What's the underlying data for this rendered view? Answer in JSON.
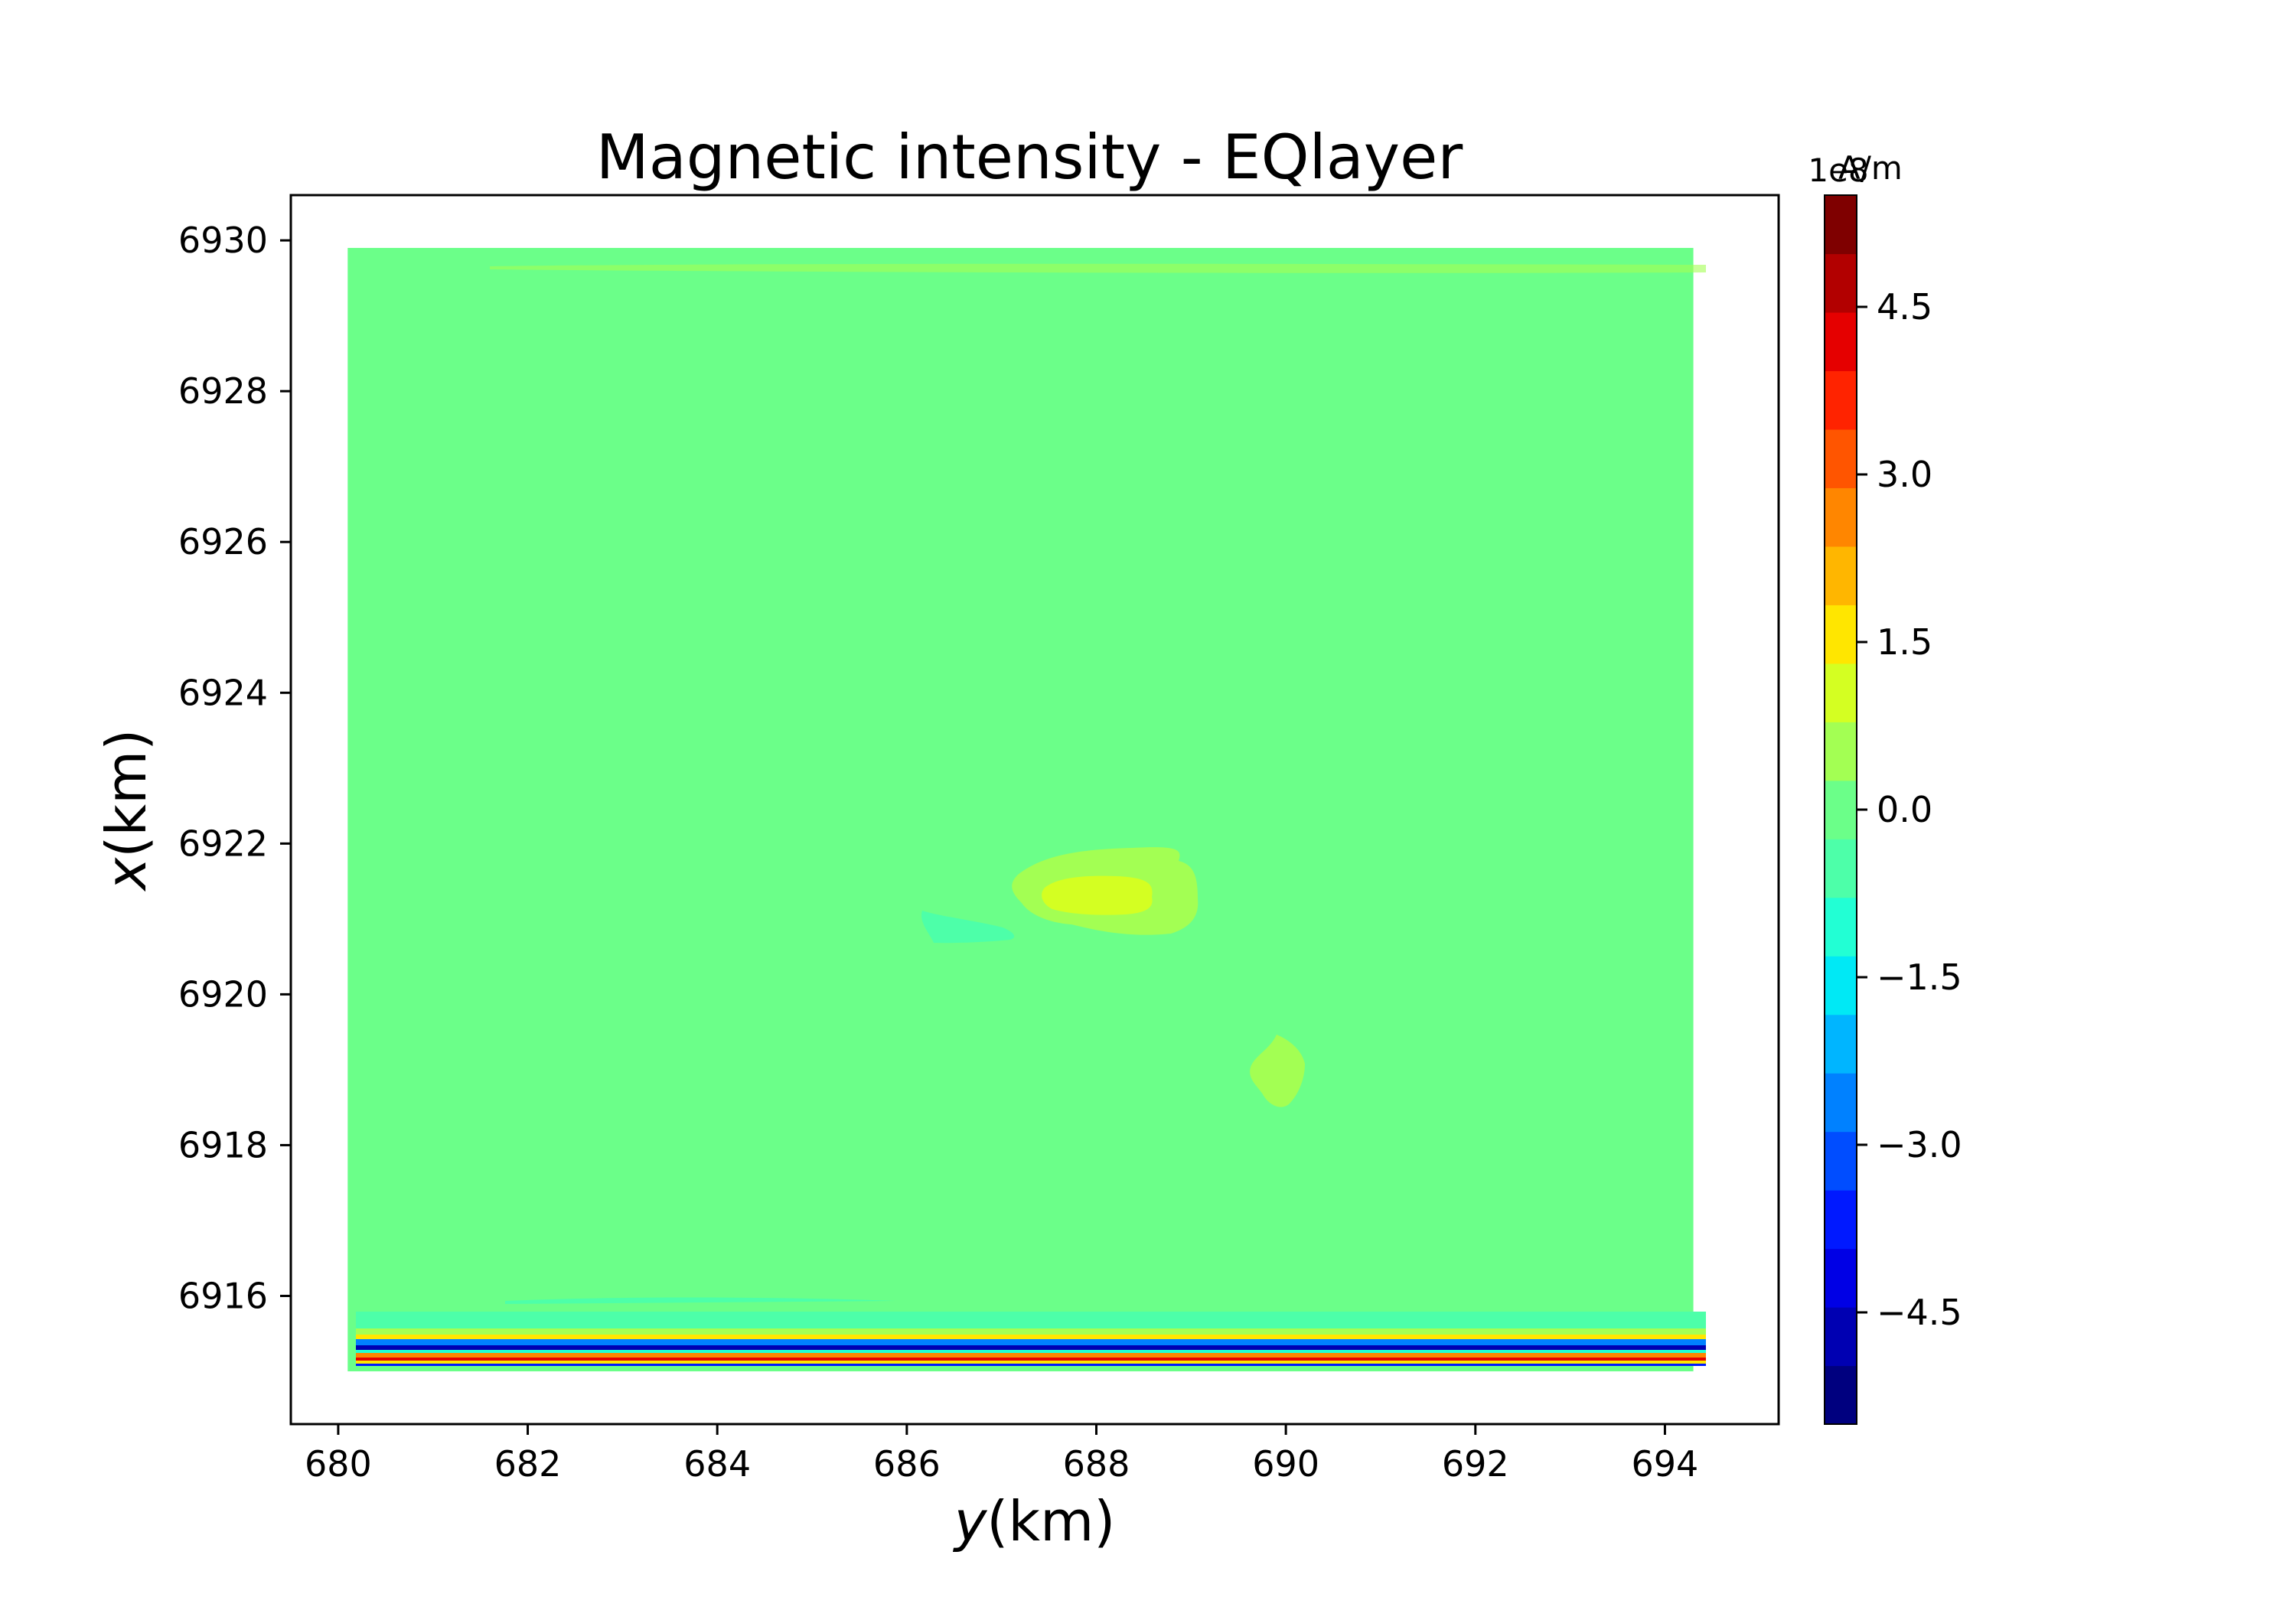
{
  "chart_data": {
    "type": "heatmap",
    "title": "Magnetic intensity - EQlayer",
    "xlabel_italic": "y",
    "xlabel_rest": "(km)",
    "ylabel_italic": "x",
    "ylabel_rest": "(km)",
    "xlim": [
      679.5,
      695.2
    ],
    "ylim": [
      6914.3,
      6930.6
    ],
    "x_ticks": [
      680,
      682,
      684,
      686,
      688,
      690,
      692,
      694
    ],
    "y_ticks": [
      6916,
      6918,
      6920,
      6922,
      6924,
      6926,
      6928,
      6930
    ],
    "data_extent": {
      "y_min": 680.1,
      "y_max": 694.3,
      "x_min": 6915.0,
      "x_max": 6929.9
    },
    "background_level": 0.0,
    "anomalies": [
      {
        "name": "positive anomaly",
        "center_y": 688.0,
        "center_x": 6921.3,
        "peak": 1.0
      },
      {
        "name": "negative anomaly",
        "center_y": 686.5,
        "center_x": 6920.9,
        "peak": -0.6
      },
      {
        "name": "small positive anomaly",
        "center_y": 689.8,
        "center_x": 6918.9,
        "peak": 0.5
      },
      {
        "name": "edge artifact band",
        "x_range": [
          6915.0,
          6915.5
        ],
        "range": [
          -5.5,
          5.5
        ]
      }
    ],
    "colorbar": {
      "label": "A/m",
      "offset_text": "1e8",
      "min": -5.5,
      "max": 5.5,
      "ticks": [
        "4.5",
        "3.0",
        "1.5",
        "0.0",
        "−1.5",
        "−3.0",
        "−4.5"
      ],
      "tick_values": [
        4.5,
        3.0,
        1.5,
        0.0,
        -1.5,
        -3.0,
        -4.5
      ],
      "colors": [
        "#00007f",
        "#0000b2",
        "#0000e5",
        "#0019ff",
        "#004dff",
        "#0081ff",
        "#00b5ff",
        "#00e9f5",
        "#22ffd4",
        "#4dffa9",
        "#6bff89",
        "#a3ff53",
        "#d4ff22",
        "#ffe600",
        "#ffb600",
        "#ff8600",
        "#ff5500",
        "#ff2300",
        "#e50000",
        "#b20000",
        "#7f0000"
      ]
    }
  }
}
